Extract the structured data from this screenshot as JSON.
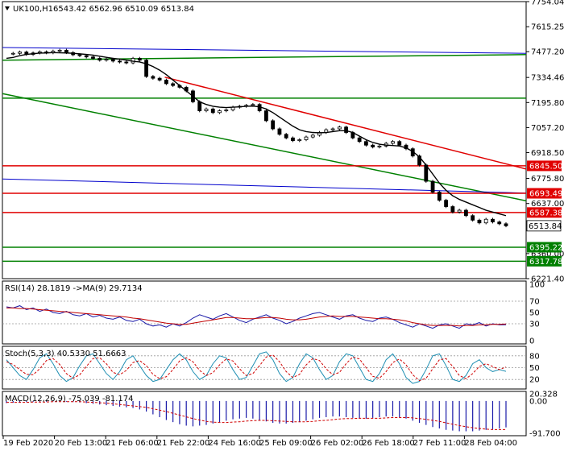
{
  "header": {
    "symbol": "UK100,H1",
    "ohlc": "6543.42 6562.96 6510.09 6513.84"
  },
  "chart_data": {
    "type": "candlestick",
    "ylim": [
      6221.4,
      7754.04
    ],
    "y_ticks": [
      "7754.04",
      "7615.25",
      "7477.20",
      "7334.46",
      "7195.80",
      "7057.20",
      "6918.50",
      "6775.80",
      "6637.00",
      "6360.00",
      "6221.40"
    ],
    "current_price": "6513.84",
    "x_ticks": [
      "19 Feb 2020",
      "20 Feb 13:00",
      "21 Feb 06:00",
      "21 Feb 22:00",
      "24 Feb 16:00",
      "25 Feb 09:00",
      "26 Feb 02:00",
      "26 Feb 18:00",
      "27 Feb 11:00",
      "28 Feb 04:00"
    ],
    "levels": [
      {
        "label": "6845.50",
        "value": 6845.5,
        "color": "#e00000"
      },
      {
        "label": "6693.49",
        "value": 6693.49,
        "color": "#e00000"
      },
      {
        "label": "6587.38",
        "value": 6587.38,
        "color": "#e00000"
      },
      {
        "label": "6395.22",
        "value": 6395.22,
        "color": "#008000"
      },
      {
        "label": "6317.78",
        "value": 6317.78,
        "color": "#008000"
      }
    ],
    "green_horizontal": [
      7220
    ],
    "trendlines": [
      {
        "color": "#0000cc",
        "from": [
          0,
          7500
        ],
        "to": [
          1,
          7468
        ]
      },
      {
        "color": "#008000",
        "from": [
          0,
          7430
        ],
        "to": [
          1,
          7461
        ]
      },
      {
        "color": "#008000",
        "from": [
          0,
          7245
        ],
        "to": [
          1,
          6652
        ]
      },
      {
        "color": "#0000cc",
        "from": [
          0,
          6773
        ],
        "to": [
          1,
          6695
        ]
      },
      {
        "color": "#e00000",
        "from": [
          0.31,
          7336
        ],
        "to": [
          1,
          6828
        ]
      }
    ],
    "price_series": [
      7465,
      7468,
      7475,
      7462,
      7470,
      7476,
      7471,
      7480,
      7485,
      7472,
      7460,
      7455,
      7448,
      7440,
      7430,
      7435,
      7425,
      7420,
      7415,
      7440,
      7430,
      7340,
      7330,
      7320,
      7300,
      7290,
      7280,
      7260,
      7200,
      7150,
      7160,
      7140,
      7150,
      7155,
      7170,
      7175,
      7180,
      7185,
      7150,
      7095,
      7050,
      7020,
      7000,
      6985,
      6990,
      7005,
      7015,
      7030,
      7045,
      7050,
      7060,
      7030,
      7000,
      6980,
      6960,
      6950,
      6955,
      6970,
      6980,
      6960,
      6940,
      6900,
      6850,
      6760,
      6700,
      6655,
      6620,
      6590,
      6600,
      6570,
      6545,
      6530,
      6550,
      6535,
      6525,
      6513.84
    ],
    "ma_series": [
      7440,
      7445,
      7455,
      7462,
      7466,
      7469,
      7470,
      7472,
      7471,
      7470,
      7468,
      7465,
      7462,
      7458,
      7452,
      7446,
      7440,
      7436,
      7430,
      7424,
      7420,
      7410,
      7395,
      7375,
      7350,
      7320,
      7290,
      7260,
      7230,
      7200,
      7185,
      7175,
      7170,
      7168,
      7170,
      7172,
      7175,
      7176,
      7172,
      7160,
      7140,
      7115,
      7090,
      7065,
      7045,
      7035,
      7030,
      7028,
      7030,
      7035,
      7040,
      7040,
      7030,
      7010,
      6990,
      6975,
      6965,
      6960,
      6958,
      6955,
      6945,
      6925,
      6895,
      6850,
      6800,
      6750,
      6710,
      6680,
      6660,
      6645,
      6630,
      6615,
      6600,
      6590,
      6580,
      6570
    ],
    "rsi": {
      "label": "RSI(14) 28.1819  ->MA(9) 29.7134",
      "ylim": [
        0,
        100
      ],
      "ticks": [
        "100",
        "70",
        "50",
        "30",
        "0"
      ],
      "values": [
        60,
        58,
        62,
        55,
        58,
        52,
        56,
        50,
        48,
        52,
        46,
        44,
        48,
        42,
        45,
        40,
        38,
        42,
        36,
        34,
        38,
        30,
        26,
        28,
        24,
        30,
        26,
        32,
        40,
        46,
        42,
        38,
        44,
        48,
        42,
        36,
        32,
        38,
        42,
        46,
        40,
        36,
        30,
        34,
        40,
        44,
        48,
        50,
        46,
        42,
        38,
        44,
        46,
        40,
        36,
        34,
        40,
        42,
        38,
        32,
        28,
        24,
        30,
        26,
        22,
        28,
        30,
        26,
        22,
        30,
        28,
        32,
        26,
        30,
        28,
        28.18
      ],
      "ma_values": [
        58,
        58,
        57,
        57,
        56,
        55,
        54,
        53,
        52,
        51,
        50,
        49,
        48,
        47,
        46,
        45,
        44,
        43,
        42,
        40,
        39,
        37,
        35,
        33,
        31,
        30,
        29,
        29,
        31,
        33,
        35,
        37,
        39,
        41,
        41,
        40,
        39,
        39,
        40,
        41,
        41,
        40,
        38,
        37,
        37,
        38,
        40,
        42,
        43,
        44,
        43,
        43,
        43,
        42,
        41,
        40,
        39,
        39,
        38,
        37,
        35,
        32,
        30,
        28,
        27,
        27,
        27,
        27,
        26,
        27,
        27,
        28,
        28,
        29,
        29,
        29.71
      ]
    },
    "stoch": {
      "label": "Stoch(5,3,3) 40.5330 51.6663",
      "ylim": [
        0,
        100
      ],
      "ticks": [
        "80",
        "50",
        "20"
      ],
      "values": [
        70,
        50,
        30,
        20,
        45,
        75,
        85,
        60,
        30,
        15,
        25,
        55,
        80,
        85,
        60,
        35,
        20,
        40,
        70,
        80,
        55,
        30,
        15,
        20,
        45,
        70,
        85,
        70,
        40,
        20,
        30,
        60,
        80,
        75,
        45,
        20,
        25,
        55,
        85,
        90,
        70,
        35,
        15,
        25,
        60,
        85,
        75,
        45,
        20,
        30,
        65,
        85,
        80,
        50,
        20,
        15,
        35,
        70,
        85,
        60,
        25,
        10,
        15,
        45,
        80,
        85,
        55,
        20,
        15,
        30,
        60,
        70,
        50,
        40,
        45,
        40.53
      ],
      "signal": [
        65,
        58,
        45,
        33,
        32,
        47,
        68,
        73,
        58,
        35,
        23,
        32,
        53,
        73,
        75,
        60,
        38,
        32,
        43,
        63,
        68,
        55,
        33,
        22,
        27,
        45,
        67,
        75,
        65,
        43,
        30,
        37,
        57,
        72,
        67,
        47,
        30,
        35,
        55,
        77,
        82,
        65,
        40,
        25,
        33,
        57,
        73,
        68,
        47,
        32,
        38,
        60,
        77,
        72,
        50,
        28,
        23,
        40,
        63,
        72,
        57,
        32,
        17,
        23,
        47,
        70,
        73,
        53,
        30,
        22,
        35,
        53,
        60,
        53,
        45,
        51.67
      ]
    },
    "macd": {
      "label": "MACD(12,26,9) -75.039 -81.174",
      "ticks": [
        "20.328",
        "0.00",
        "-91.700"
      ],
      "ylim": [
        -91.7,
        20.328
      ],
      "values": [
        -6,
        -5,
        -4,
        -3,
        -3,
        -2,
        -2,
        -1,
        -1,
        -2,
        -3,
        -4,
        -6,
        -8,
        -10,
        -12,
        -14,
        -16,
        -18,
        -20,
        -24,
        -30,
        -38,
        -46,
        -54,
        -60,
        -66,
        -70,
        -72,
        -70,
        -68,
        -64,
        -60,
        -56,
        -52,
        -50,
        -48,
        -50,
        -54,
        -58,
        -62,
        -64,
        -64,
        -62,
        -60,
        -56,
        -52,
        -48,
        -46,
        -44,
        -44,
        -46,
        -48,
        -50,
        -50,
        -48,
        -46,
        -44,
        -44,
        -46,
        -50,
        -56,
        -62,
        -68,
        -74,
        -78,
        -82,
        -84,
        -86,
        -86,
        -86,
        -84,
        -82,
        -80,
        -78,
        -75.04
      ],
      "signal": [
        -4,
        -4,
        -4,
        -4,
        -3,
        -3,
        -3,
        -2,
        -2,
        -2,
        -2,
        -2,
        -3,
        -4,
        -5,
        -6,
        -8,
        -10,
        -12,
        -14,
        -16,
        -18,
        -22,
        -26,
        -30,
        -35,
        -40,
        -45,
        -50,
        -54,
        -58,
        -60,
        -61,
        -61,
        -60,
        -59,
        -57,
        -56,
        -55,
        -55,
        -56,
        -57,
        -58,
        -59,
        -59,
        -59,
        -58,
        -56,
        -55,
        -53,
        -51,
        -50,
        -50,
        -49,
        -49,
        -49,
        -49,
        -48,
        -47,
        -47,
        -47,
        -48,
        -50,
        -52,
        -55,
        -58,
        -62,
        -66,
        -70,
        -73,
        -76,
        -78,
        -80,
        -81,
        -81,
        -81.17
      ]
    }
  }
}
